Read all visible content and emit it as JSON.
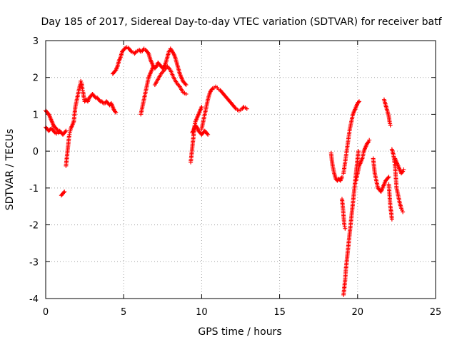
{
  "chart_data": {
    "type": "scatter",
    "title": "Day 185 of 2017, Sidereal Day-to-day VTEC variation (SDTVAR) for receiver batf",
    "xlabel": "GPS time / hours",
    "ylabel": "SDTVAR / TECUs",
    "xlim": [
      0,
      25
    ],
    "ylim": [
      -4,
      3
    ],
    "xticks": [
      0,
      5,
      10,
      15,
      20,
      25
    ],
    "yticks": [
      -4,
      -3,
      -2,
      -1,
      0,
      1,
      2,
      3
    ],
    "grid": true,
    "marker": "plus",
    "color": "#ff0000",
    "segments": [
      [
        [
          0.0,
          0.65
        ],
        [
          0.1,
          0.6
        ],
        [
          0.2,
          0.55
        ],
        [
          0.3,
          0.6
        ],
        [
          0.4,
          0.62
        ],
        [
          0.5,
          0.55
        ],
        [
          0.6,
          0.5
        ],
        [
          0.7,
          0.48
        ],
        [
          0.8,
          0.5
        ],
        [
          0.9,
          0.55
        ],
        [
          1.0,
          0.5
        ],
        [
          1.1,
          0.45
        ],
        [
          1.2,
          0.5
        ],
        [
          1.3,
          0.55
        ]
      ],
      [
        [
          0.0,
          1.1
        ],
        [
          0.1,
          1.05
        ],
        [
          0.2,
          1.0
        ],
        [
          0.3,
          0.9
        ],
        [
          0.4,
          0.8
        ],
        [
          0.5,
          0.7
        ],
        [
          0.6,
          0.65
        ],
        [
          0.7,
          0.6
        ],
        [
          0.8,
          0.55
        ],
        [
          0.9,
          0.52
        ]
      ],
      [
        [
          1.0,
          -1.2
        ],
        [
          1.1,
          -1.15
        ],
        [
          1.2,
          -1.1
        ]
      ],
      [
        [
          1.3,
          -0.4
        ],
        [
          1.35,
          -0.2
        ],
        [
          1.4,
          0.0
        ],
        [
          1.45,
          0.2
        ],
        [
          1.5,
          0.4
        ],
        [
          1.55,
          0.5
        ],
        [
          1.6,
          0.6
        ],
        [
          1.7,
          0.7
        ],
        [
          1.8,
          0.8
        ],
        [
          1.85,
          1.0
        ],
        [
          1.9,
          1.2
        ],
        [
          2.0,
          1.4
        ],
        [
          2.1,
          1.6
        ],
        [
          2.2,
          1.8
        ],
        [
          2.25,
          1.9
        ],
        [
          2.3,
          1.85
        ],
        [
          2.35,
          1.7
        ],
        [
          2.4,
          1.6
        ],
        [
          2.45,
          1.45
        ],
        [
          2.5,
          1.35
        ],
        [
          2.6,
          1.4
        ],
        [
          2.7,
          1.35
        ],
        [
          2.8,
          1.45
        ],
        [
          2.9,
          1.5
        ],
        [
          3.0,
          1.55
        ],
        [
          3.1,
          1.5
        ],
        [
          3.2,
          1.45
        ],
        [
          3.3,
          1.45
        ],
        [
          3.4,
          1.4
        ],
        [
          3.5,
          1.35
        ],
        [
          3.6,
          1.35
        ],
        [
          3.7,
          1.3
        ],
        [
          3.8,
          1.3
        ],
        [
          3.9,
          1.35
        ],
        [
          4.0,
          1.3
        ],
        [
          4.1,
          1.25
        ],
        [
          4.2,
          1.3
        ],
        [
          4.3,
          1.2
        ],
        [
          4.4,
          1.1
        ],
        [
          4.5,
          1.05
        ]
      ],
      [
        [
          4.3,
          2.1
        ],
        [
          4.4,
          2.15
        ],
        [
          4.5,
          2.2
        ],
        [
          4.6,
          2.3
        ],
        [
          4.7,
          2.45
        ],
        [
          4.8,
          2.55
        ],
        [
          4.9,
          2.7
        ],
        [
          5.0,
          2.75
        ],
        [
          5.1,
          2.8
        ],
        [
          5.2,
          2.82
        ],
        [
          5.3,
          2.8
        ],
        [
          5.4,
          2.75
        ],
        [
          5.5,
          2.7
        ],
        [
          5.6,
          2.68
        ],
        [
          5.7,
          2.65
        ],
        [
          5.8,
          2.7
        ],
        [
          5.9,
          2.72
        ],
        [
          6.0,
          2.75
        ],
        [
          6.1,
          2.7
        ],
        [
          6.2,
          2.72
        ],
        [
          6.3,
          2.78
        ],
        [
          6.4,
          2.75
        ],
        [
          6.5,
          2.7
        ],
        [
          6.6,
          2.65
        ],
        [
          6.7,
          2.5
        ],
        [
          6.8,
          2.4
        ],
        [
          6.9,
          2.3
        ],
        [
          7.0,
          2.25
        ],
        [
          7.1,
          2.3
        ],
        [
          7.2,
          2.4
        ],
        [
          7.3,
          2.35
        ],
        [
          7.4,
          2.3
        ],
        [
          7.5,
          2.25
        ],
        [
          7.6,
          2.3
        ],
        [
          7.7,
          2.4
        ],
        [
          7.8,
          2.55
        ],
        [
          7.9,
          2.7
        ],
        [
          8.0,
          2.78
        ],
        [
          8.1,
          2.72
        ],
        [
          8.2,
          2.65
        ],
        [
          8.3,
          2.55
        ],
        [
          8.4,
          2.4
        ],
        [
          8.5,
          2.25
        ],
        [
          8.6,
          2.1
        ],
        [
          8.7,
          2.0
        ],
        [
          8.8,
          1.9
        ],
        [
          8.9,
          1.85
        ],
        [
          9.0,
          1.8
        ]
      ],
      [
        [
          6.1,
          1.0
        ],
        [
          6.2,
          1.2
        ],
        [
          6.3,
          1.4
        ],
        [
          6.4,
          1.6
        ],
        [
          6.5,
          1.8
        ],
        [
          6.6,
          2.0
        ],
        [
          6.7,
          2.1
        ],
        [
          6.8,
          2.2
        ],
        [
          6.9,
          2.3
        ]
      ],
      [
        [
          7.0,
          1.8
        ],
        [
          7.2,
          1.95
        ],
        [
          7.4,
          2.1
        ],
        [
          7.6,
          2.2
        ],
        [
          7.8,
          2.3
        ],
        [
          8.0,
          2.2
        ],
        [
          8.2,
          2.0
        ],
        [
          8.4,
          1.85
        ],
        [
          8.6,
          1.75
        ],
        [
          8.8,
          1.6
        ],
        [
          9.0,
          1.55
        ]
      ],
      [
        [
          9.3,
          -0.3
        ],
        [
          9.35,
          -0.1
        ],
        [
          9.4,
          0.1
        ],
        [
          9.45,
          0.3
        ],
        [
          9.5,
          0.5
        ],
        [
          9.55,
          0.7
        ],
        [
          9.6,
          0.8
        ],
        [
          9.7,
          0.9
        ],
        [
          9.8,
          1.0
        ],
        [
          9.9,
          1.1
        ],
        [
          10.0,
          1.2
        ]
      ],
      [
        [
          9.4,
          0.5
        ],
        [
          9.5,
          0.6
        ],
        [
          9.6,
          0.7
        ],
        [
          9.7,
          0.65
        ],
        [
          9.8,
          0.55
        ],
        [
          9.9,
          0.5
        ],
        [
          10.0,
          0.45
        ],
        [
          10.1,
          0.5
        ],
        [
          10.2,
          0.55
        ],
        [
          10.3,
          0.5
        ],
        [
          10.4,
          0.45
        ]
      ],
      [
        [
          10.0,
          0.6
        ],
        [
          10.1,
          0.8
        ],
        [
          10.2,
          1.0
        ],
        [
          10.3,
          1.2
        ],
        [
          10.4,
          1.4
        ],
        [
          10.5,
          1.55
        ],
        [
          10.6,
          1.65
        ],
        [
          10.7,
          1.7
        ],
        [
          10.8,
          1.72
        ],
        [
          10.9,
          1.75
        ],
        [
          11.0,
          1.72
        ],
        [
          11.1,
          1.68
        ],
        [
          11.2,
          1.65
        ],
        [
          11.3,
          1.6
        ],
        [
          11.4,
          1.55
        ],
        [
          11.5,
          1.5
        ],
        [
          11.6,
          1.45
        ],
        [
          11.7,
          1.4
        ],
        [
          11.8,
          1.35
        ],
        [
          11.9,
          1.3
        ],
        [
          12.0,
          1.25
        ],
        [
          12.1,
          1.2
        ],
        [
          12.2,
          1.15
        ],
        [
          12.3,
          1.12
        ],
        [
          12.4,
          1.1
        ],
        [
          12.5,
          1.12
        ],
        [
          12.6,
          1.15
        ],
        [
          12.7,
          1.2
        ],
        [
          12.8,
          1.18
        ],
        [
          12.9,
          1.15
        ]
      ],
      [
        [
          18.3,
          -0.05
        ],
        [
          18.35,
          -0.25
        ],
        [
          18.4,
          -0.4
        ],
        [
          18.5,
          -0.6
        ],
        [
          18.6,
          -0.75
        ],
        [
          18.7,
          -0.8
        ],
        [
          18.8,
          -0.75
        ],
        [
          18.9,
          -0.8
        ],
        [
          19.0,
          -0.7
        ]
      ],
      [
        [
          19.0,
          -1.3
        ],
        [
          19.05,
          -1.5
        ],
        [
          19.1,
          -1.75
        ],
        [
          19.15,
          -2.0
        ],
        [
          19.2,
          -2.1
        ]
      ],
      [
        [
          19.1,
          -3.9
        ],
        [
          19.15,
          -3.7
        ],
        [
          19.2,
          -3.5
        ],
        [
          19.25,
          -3.2
        ],
        [
          19.3,
          -3.0
        ],
        [
          19.35,
          -2.8
        ],
        [
          19.4,
          -2.6
        ],
        [
          19.45,
          -2.4
        ],
        [
          19.5,
          -2.2
        ],
        [
          19.55,
          -2.0
        ],
        [
          19.6,
          -1.8
        ],
        [
          19.65,
          -1.6
        ],
        [
          19.7,
          -1.4
        ],
        [
          19.75,
          -1.2
        ],
        [
          19.8,
          -1.0
        ],
        [
          19.85,
          -0.8
        ],
        [
          19.9,
          -0.6
        ],
        [
          19.95,
          -0.4
        ],
        [
          20.0,
          -0.2
        ],
        [
          20.05,
          0.0
        ]
      ],
      [
        [
          19.1,
          -0.6
        ],
        [
          19.2,
          -0.3
        ],
        [
          19.3,
          0.0
        ],
        [
          19.4,
          0.3
        ],
        [
          19.5,
          0.6
        ],
        [
          19.6,
          0.8
        ],
        [
          19.7,
          1.0
        ],
        [
          19.8,
          1.1
        ],
        [
          19.9,
          1.2
        ],
        [
          20.0,
          1.3
        ],
        [
          20.1,
          1.35
        ]
      ],
      [
        [
          19.9,
          -0.8
        ],
        [
          20.0,
          -0.6
        ],
        [
          20.1,
          -0.4
        ],
        [
          20.2,
          -0.3
        ],
        [
          20.3,
          -0.2
        ],
        [
          20.4,
          0.0
        ],
        [
          20.5,
          0.1
        ],
        [
          20.6,
          0.2
        ],
        [
          20.7,
          0.25
        ],
        [
          20.75,
          0.3
        ]
      ],
      [
        [
          21.0,
          -0.2
        ],
        [
          21.05,
          -0.4
        ],
        [
          21.1,
          -0.6
        ],
        [
          21.2,
          -0.8
        ],
        [
          21.3,
          -1.0
        ],
        [
          21.4,
          -1.05
        ],
        [
          21.5,
          -1.1
        ],
        [
          21.6,
          -1.0
        ],
        [
          21.7,
          -0.9
        ],
        [
          21.8,
          -0.8
        ],
        [
          21.9,
          -0.75
        ],
        [
          22.0,
          -0.7
        ]
      ],
      [
        [
          21.7,
          1.4
        ],
        [
          21.8,
          1.25
        ],
        [
          21.9,
          1.1
        ],
        [
          22.0,
          0.95
        ],
        [
          22.05,
          0.8
        ],
        [
          22.1,
          0.7
        ]
      ],
      [
        [
          22.0,
          -0.9
        ],
        [
          22.05,
          -1.2
        ],
        [
          22.1,
          -1.5
        ],
        [
          22.15,
          -1.65
        ],
        [
          22.2,
          -1.85
        ]
      ],
      [
        [
          22.2,
          0.05
        ],
        [
          22.3,
          -0.1
        ],
        [
          22.4,
          -0.4
        ],
        [
          22.45,
          -0.7
        ],
        [
          22.5,
          -1.0
        ],
        [
          22.6,
          -1.2
        ],
        [
          22.7,
          -1.4
        ],
        [
          22.8,
          -1.55
        ],
        [
          22.85,
          -1.6
        ],
        [
          22.9,
          -1.65
        ]
      ],
      [
        [
          22.4,
          -0.2
        ],
        [
          22.5,
          -0.3
        ],
        [
          22.6,
          -0.4
        ],
        [
          22.7,
          -0.5
        ],
        [
          22.8,
          -0.6
        ],
        [
          22.9,
          -0.55
        ],
        [
          22.95,
          -0.5
        ]
      ]
    ]
  }
}
